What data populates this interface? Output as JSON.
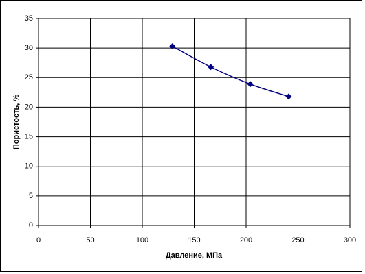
{
  "chart_data": {
    "type": "line",
    "x_label": "Давление, МПа",
    "y_label": "Пористость, %",
    "x": [
      129,
      166,
      204,
      241
    ],
    "series": [
      {
        "color": "#000080",
        "values": [
          30.3,
          26.8,
          23.9,
          21.8
        ]
      }
    ],
    "xlim": [
      0,
      300
    ],
    "xticks": [
      0,
      50,
      100,
      150,
      200,
      250,
      300
    ],
    "ylim": [
      0,
      35
    ],
    "yticks": [
      0,
      5,
      10,
      15,
      20,
      25,
      30,
      35
    ],
    "grid": true,
    "smooth": true,
    "marker": "diamond"
  }
}
